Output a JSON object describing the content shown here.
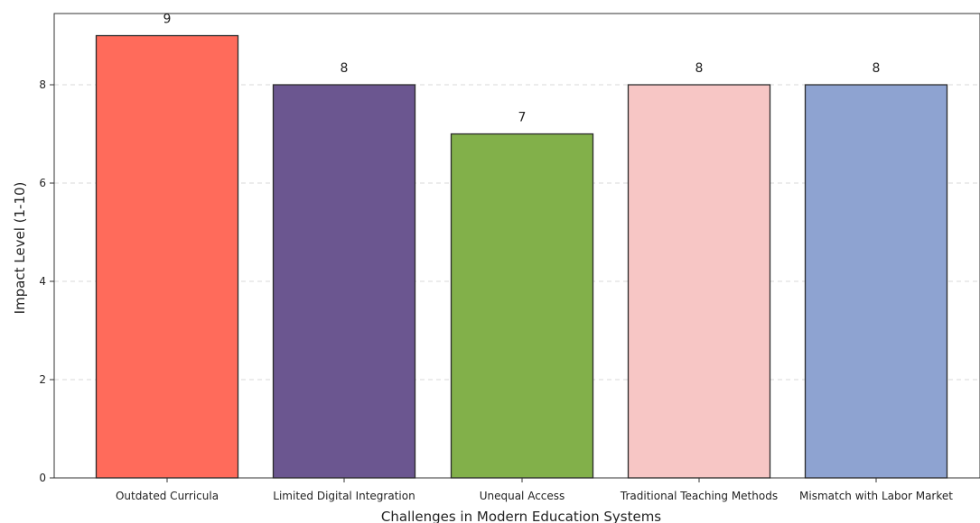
{
  "chart_data": {
    "type": "bar",
    "categories": [
      "Outdated Curricula",
      "Limited Digital Integration",
      "Unequal Access",
      "Traditional Teaching Methods",
      "Mismatch with Labor Market"
    ],
    "values": [
      9,
      8,
      7,
      8,
      8
    ],
    "colors": [
      "#ff6b5b",
      "#6b5690",
      "#82b04a",
      "#f7c6c5",
      "#8ea3d1"
    ],
    "xlabel": "Challenges in Modern Education Systems",
    "ylabel": "Impact Level (1-10)",
    "ylim": [
      0,
      9.45
    ],
    "yticks": [
      0,
      2,
      4,
      6,
      8
    ],
    "grid": "horizontal dashed"
  }
}
